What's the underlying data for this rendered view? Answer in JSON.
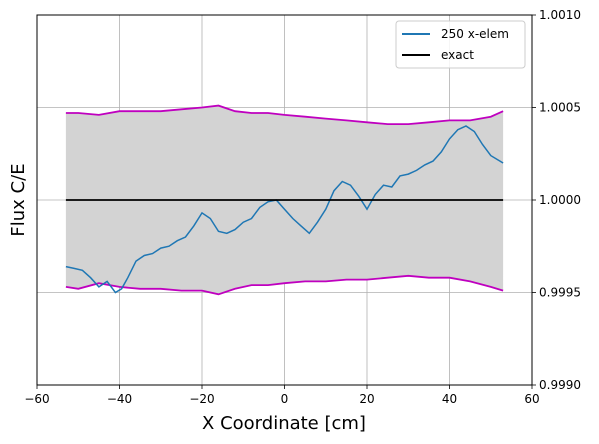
{
  "chart_data": {
    "type": "line",
    "xlabel": "X Coordinate [cm]",
    "ylabel": "Flux C/E",
    "xlim": [
      -60,
      60
    ],
    "ylim": [
      0.999,
      1.001
    ],
    "x_ticks": [
      -60,
      -40,
      -20,
      0,
      20,
      40,
      60
    ],
    "x_tick_labels": [
      "−60",
      "−40",
      "−20",
      "0",
      "20",
      "40",
      "60"
    ],
    "y_ticks": [
      0.999,
      0.9995,
      1.0,
      1.0005,
      1.001
    ],
    "y_tick_labels": [
      "0.9990",
      "0.9995",
      "1.0000",
      "1.0005",
      "1.0010"
    ],
    "y_axis_side": "right",
    "grid": true,
    "legend": {
      "placement": "top-right",
      "entries": [
        {
          "label": "250 x-elem",
          "color": "#1f77b4"
        },
        {
          "label": "exact",
          "color": "#000000"
        }
      ]
    },
    "band_fill_color": "#d3d3d3",
    "band_edge_color": "#bf00bf",
    "series": [
      {
        "name": "250 x-elem",
        "color": "#1f77b4",
        "x": [
          -53,
          -51,
          -49,
          -47,
          -45,
          -43,
          -41,
          -39.5,
          -38,
          -36,
          -34,
          -32,
          -30,
          -28,
          -26,
          -24,
          -22,
          -20,
          -18,
          -16,
          -14,
          -12,
          -10,
          -8,
          -6,
          -4,
          -2,
          0,
          2,
          4,
          6,
          8,
          10,
          12,
          14,
          16,
          18,
          20,
          22,
          24,
          26,
          28,
          30,
          32,
          34,
          36,
          38,
          40,
          42,
          44,
          46,
          48,
          50,
          53
        ],
        "y": [
          0.99964,
          0.99963,
          0.99962,
          0.99958,
          0.99953,
          0.99956,
          0.9995,
          0.99952,
          0.99958,
          0.99967,
          0.9997,
          0.99971,
          0.99974,
          0.99975,
          0.99978,
          0.9998,
          0.99986,
          0.99993,
          0.9999,
          0.99983,
          0.99982,
          0.99984,
          0.99988,
          0.9999,
          0.99996,
          0.99999,
          1.0,
          0.99995,
          0.9999,
          0.99986,
          0.99982,
          0.99988,
          0.99995,
          1.00005,
          1.0001,
          1.00008,
          1.00002,
          0.99995,
          1.00003,
          1.00008,
          1.00007,
          1.00013,
          1.00014,
          1.00016,
          1.00019,
          1.00021,
          1.00026,
          1.00033,
          1.00038,
          1.0004,
          1.00037,
          1.0003,
          1.00024,
          1.0002
        ]
      },
      {
        "name": "exact",
        "color": "#000000",
        "x": [
          -53,
          53
        ],
        "y": [
          1.0,
          1.0
        ]
      }
    ],
    "uncertainty_band": {
      "x": [
        -53,
        -50,
        -45,
        -40,
        -35,
        -30,
        -25,
        -20,
        -16,
        -12,
        -8,
        -4,
        0,
        5,
        10,
        15,
        20,
        25,
        30,
        35,
        40,
        45,
        50,
        53
      ],
      "upper": [
        1.00047,
        1.00047,
        1.00046,
        1.00048,
        1.00048,
        1.00048,
        1.00049,
        1.0005,
        1.00051,
        1.00048,
        1.00047,
        1.00047,
        1.00046,
        1.00045,
        1.00044,
        1.00043,
        1.00042,
        1.00041,
        1.00041,
        1.00042,
        1.00043,
        1.00043,
        1.00045,
        1.00048
      ],
      "lower": [
        0.99953,
        0.99952,
        0.99955,
        0.99953,
        0.99952,
        0.99952,
        0.99951,
        0.99951,
        0.99949,
        0.99952,
        0.99954,
        0.99954,
        0.99955,
        0.99956,
        0.99956,
        0.99957,
        0.99957,
        0.99958,
        0.99959,
        0.99958,
        0.99958,
        0.99956,
        0.99953,
        0.99951
      ]
    }
  }
}
